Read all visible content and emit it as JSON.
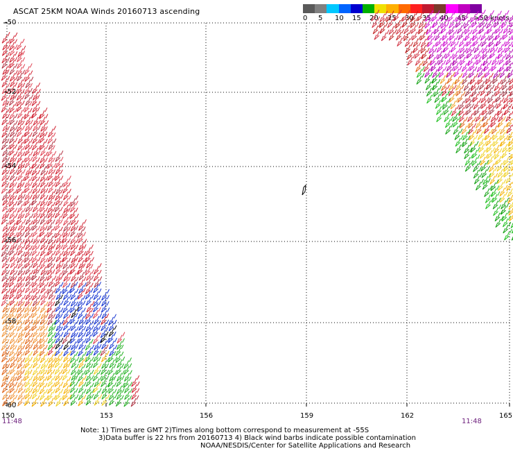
{
  "title": "ASCAT 25KM NOAA Winds 20160713 ascending",
  "colorbar": {
    "labels": [
      "0",
      "5",
      "10",
      "15",
      "20",
      "25",
      "30",
      "35",
      "40",
      "45",
      ">50 knots"
    ],
    "colors": [
      "#5a5a5a",
      "#808080",
      "#00c8ff",
      "#0064ff",
      "#0000d0",
      "#00b000",
      "#f0e000",
      "#ffb000",
      "#ff6a00",
      "#ff2020",
      "#c01a30",
      "#7a3a2a",
      "#ff00ff",
      "#c000c0",
      "#8000a0"
    ]
  },
  "axes": {
    "lat_labels": [
      "-50",
      "-52",
      "-54",
      "-56",
      "-58",
      "-60"
    ],
    "lon_labels": [
      "150",
      "153",
      "156",
      "159",
      "162",
      "165"
    ]
  },
  "times": {
    "left": "11:48",
    "right": "11:48"
  },
  "notes": {
    "line1": "Note: 1) Times are GMT 2)Times along bottom correspond to measurement at -55S",
    "line2": "3)Data buffer is 22 hrs from 20160713 4) Black wind barbs indicate possible contamination",
    "line3": "NOAA/NESDIS/Center for Satellite Applications and Research"
  }
}
